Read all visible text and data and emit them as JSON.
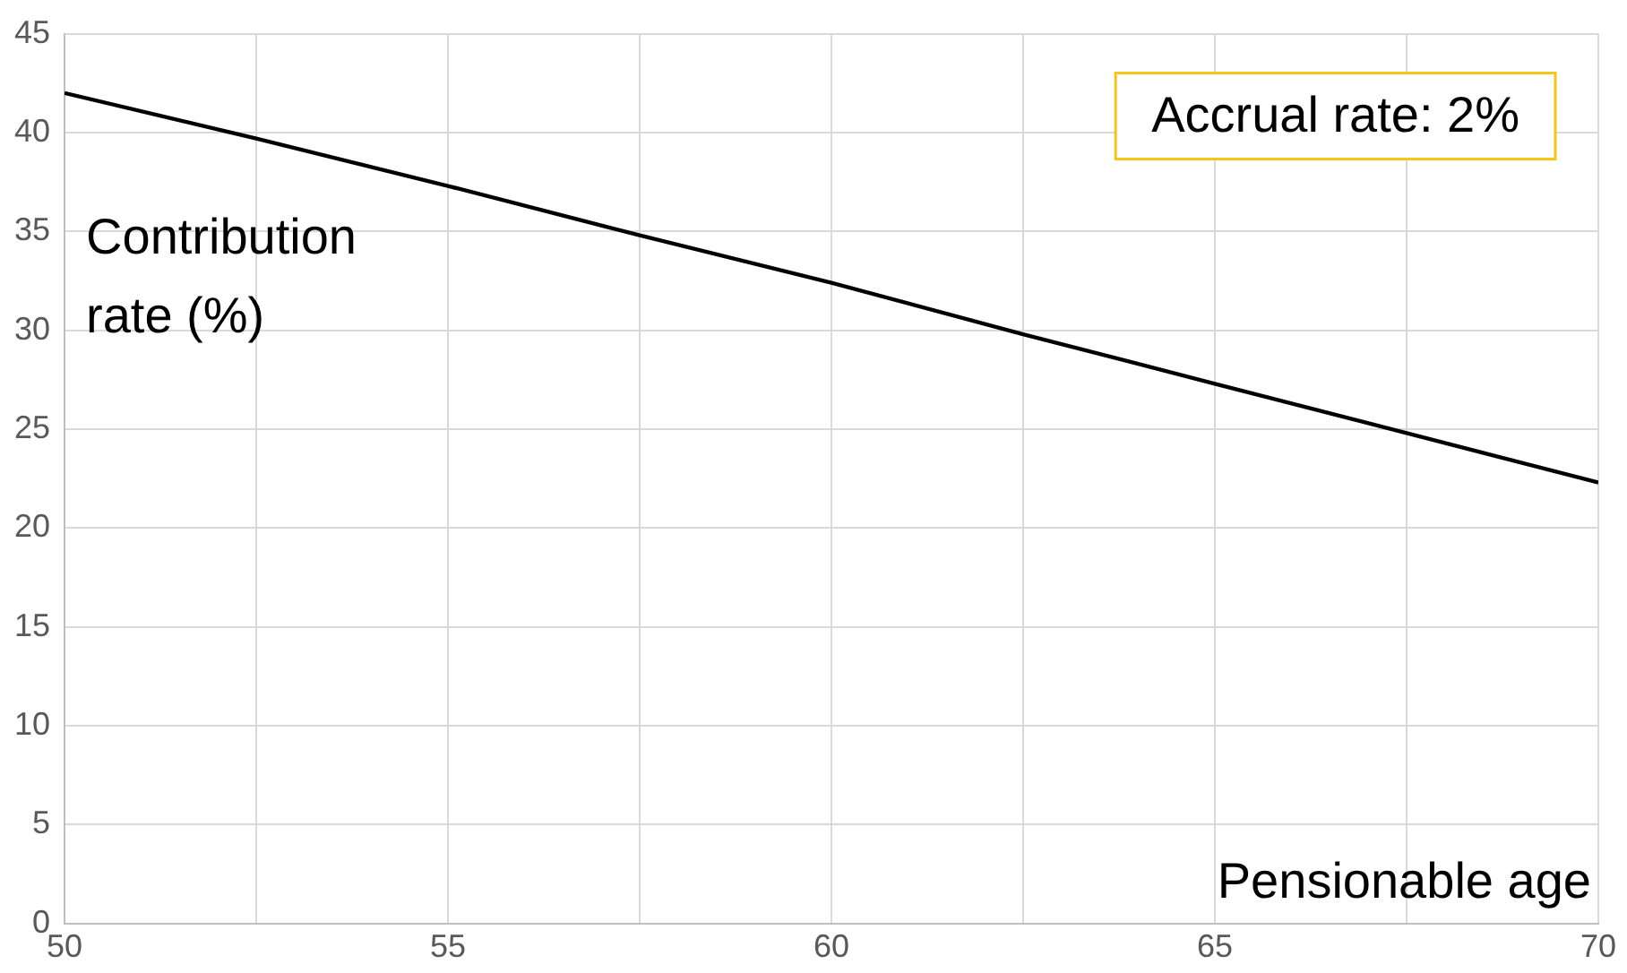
{
  "chart_data": {
    "type": "line",
    "xlabel": "Pensionable age",
    "ylabel": "Contribution rate (%)",
    "annotations": [
      "Accrual rate: 2%"
    ],
    "x": [
      50,
      52.5,
      55,
      57.5,
      60,
      62.5,
      65,
      67.5,
      70
    ],
    "series": [
      {
        "color": "#000000",
        "values": [
          42,
          39.7,
          37.3,
          34.8,
          32.4,
          29.8,
          27.3,
          24.8,
          22.3
        ]
      }
    ],
    "xlim": [
      50,
      70
    ],
    "xticks": [
      50,
      {
        "value": 52.5,
        "label": null
      },
      55,
      {
        "value": 57.5,
        "label": null
      },
      60,
      {
        "value": 62.5,
        "label": null
      },
      65,
      {
        "value": 67.5,
        "label": null
      },
      70
    ],
    "ylim": [
      0,
      45
    ],
    "yticks": [
      0,
      5,
      10,
      15,
      20,
      25,
      30,
      35,
      40,
      45
    ],
    "grid": true,
    "legend": false,
    "marker": "none",
    "line_style": "solid"
  }
}
